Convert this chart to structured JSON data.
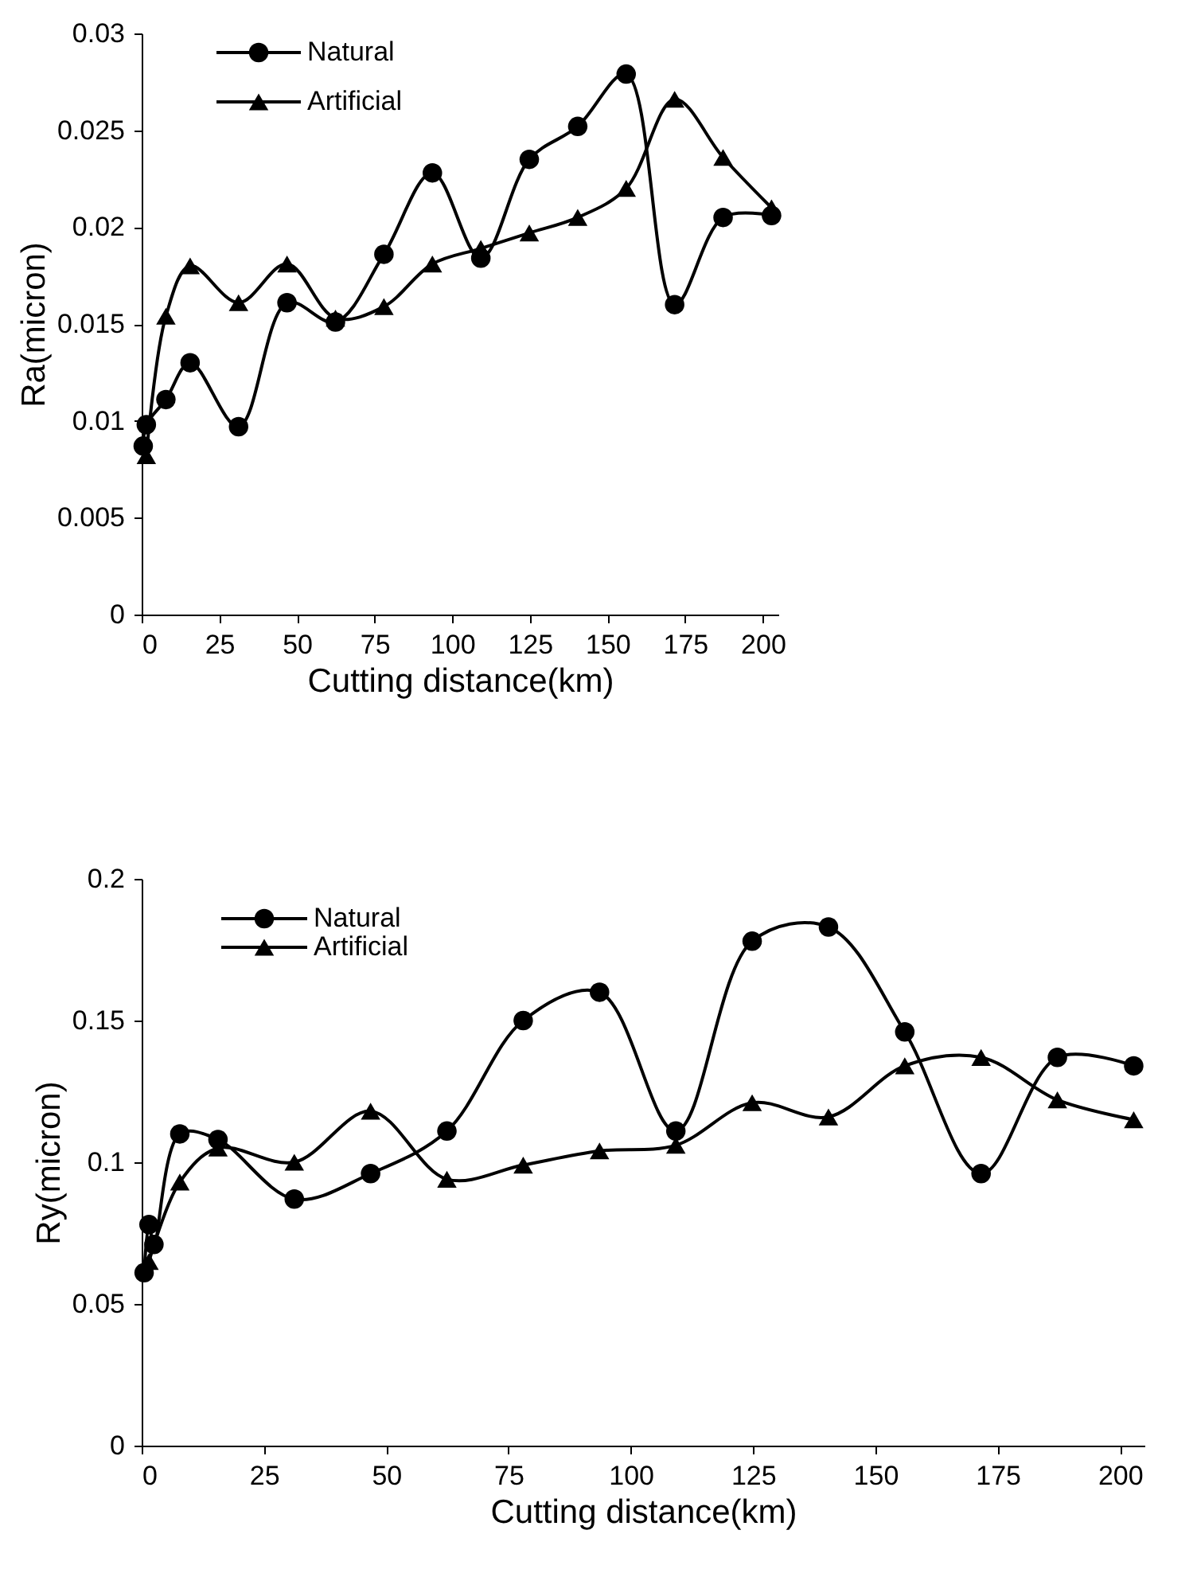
{
  "chart_data": [
    {
      "type": "line",
      "xlabel": "Cutting distance(km)",
      "ylabel": "Ra(micron)",
      "xlim": [
        0,
        205
      ],
      "xticks": [
        0,
        25,
        50,
        75,
        100,
        125,
        150,
        175,
        200
      ],
      "ylim": [
        0,
        0.03
      ],
      "yticks": [
        0,
        0.005,
        0.01,
        0.015,
        0.02,
        0.025,
        0.03
      ],
      "grid": false,
      "legend": "top left",
      "line_style": "solid",
      "series": [
        {
          "name": "Natural",
          "color": "#000000",
          "marker": "circle",
          "x": [
            0.5,
            1.5,
            7.8,
            15.6,
            31.2,
            46.8,
            62.4,
            78,
            93.6,
            109.2,
            124.8,
            140.4,
            156,
            171.6,
            187.2,
            202.8
          ],
          "values": [
            0.0087,
            0.0098,
            0.0111,
            0.013,
            0.0097,
            0.0161,
            0.0151,
            0.0186,
            0.0228,
            0.0184,
            0.0235,
            0.0252,
            0.0279,
            0.016,
            0.0205,
            0.0206
          ]
        },
        {
          "name": "Artificial",
          "color": "#000000",
          "marker": "triangle",
          "x": [
            1.5,
            7.8,
            15.6,
            31.2,
            46.8,
            62.4,
            78,
            93.6,
            109.2,
            124.8,
            140.4,
            156,
            171.6,
            187.2,
            202.8
          ],
          "values": [
            0.0082,
            0.0154,
            0.018,
            0.0161,
            0.0181,
            0.0153,
            0.0159,
            0.0181,
            0.0189,
            0.0197,
            0.0205,
            0.022,
            0.0266,
            0.0236,
            0.021
          ]
        }
      ]
    },
    {
      "type": "line",
      "xlabel": "Cutting distance(km)",
      "ylabel": "Ry(micron)",
      "xlim": [
        0,
        205
      ],
      "xticks": [
        0,
        25,
        50,
        75,
        100,
        125,
        150,
        175,
        200
      ],
      "ylim": [
        0,
        0.2
      ],
      "yticks": [
        0,
        0.05,
        0.1,
        0.15,
        0.2
      ],
      "grid": false,
      "legend": "top left",
      "line_style": "solid",
      "series": [
        {
          "name": "Natural",
          "color": "#000000",
          "marker": "circle",
          "x": [
            0.5,
            1.5,
            2.5,
            7.8,
            15.6,
            31.2,
            46.8,
            62.4,
            78,
            93.6,
            109.2,
            124.8,
            140.4,
            156,
            171.6,
            187.2,
            202.8
          ],
          "values": [
            0.061,
            0.078,
            0.071,
            0.11,
            0.108,
            0.087,
            0.096,
            0.111,
            0.15,
            0.16,
            0.111,
            0.178,
            0.183,
            0.146,
            0.096,
            0.137,
            0.134
          ]
        },
        {
          "name": "Artificial",
          "color": "#000000",
          "marker": "triangle",
          "x": [
            1.5,
            7.8,
            15.6,
            31.2,
            46.8,
            62.4,
            78,
            93.6,
            109.2,
            124.8,
            140.4,
            156,
            171.6,
            187.2,
            202.8
          ],
          "values": [
            0.065,
            0.093,
            0.105,
            0.1,
            0.118,
            0.094,
            0.099,
            0.104,
            0.106,
            0.121,
            0.116,
            0.134,
            0.137,
            0.122,
            0.115
          ]
        }
      ]
    }
  ]
}
